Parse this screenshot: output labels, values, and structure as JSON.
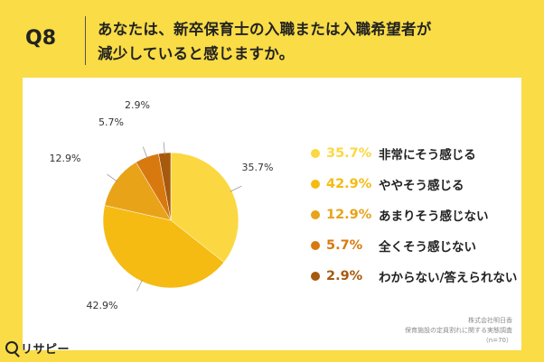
{
  "question": {
    "number": "Q8",
    "line1": "あなたは、新卒保育士の入職または入職希望者が",
    "line2": "減少していると感じますか。"
  },
  "chart_data": {
    "type": "pie",
    "start": "12 o'clock, clockwise",
    "slices": [
      {
        "label": "非常にそう感じる",
        "value": 35.7,
        "value_label": "35.7%",
        "color": "#fbd841"
      },
      {
        "label": "ややそう感じる",
        "value": 42.9,
        "value_label": "42.9%",
        "color": "#f5bb13"
      },
      {
        "label": "あまりそう感じない",
        "value": 12.9,
        "value_label": "12.9%",
        "color": "#e8a319"
      },
      {
        "label": "全くそう感じない",
        "value": 5.7,
        "value_label": "5.7%",
        "color": "#d8790f"
      },
      {
        "label": "わからない/答えられない",
        "value": 2.9,
        "value_label": "2.9%",
        "color": "#a7590e"
      }
    ]
  },
  "footnote": {
    "company": "株式会社明日香",
    "survey": "保育施設の定員割れに関する実態調査",
    "n": "（n=70）"
  },
  "logo": {
    "text": "リサピー"
  }
}
